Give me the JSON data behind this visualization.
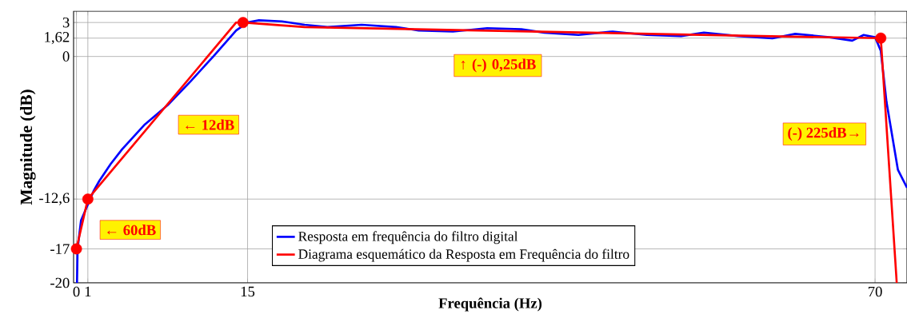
{
  "chart_data": {
    "type": "line",
    "xlabel": "Frequência (Hz)",
    "ylabel": "Magnitude (dB)",
    "xlim": [
      -0.25,
      72.8
    ],
    "ylim": [
      -20,
      4
    ],
    "xticks": [
      0,
      1,
      15,
      70
    ],
    "yticks": [
      -20,
      -17,
      {
        "value": -12.6,
        "label": "-12,6"
      },
      0,
      {
        "value": 1.62,
        "label": "1,62"
      },
      3
    ],
    "grid": true,
    "legend": "bottom",
    "series": [
      {
        "name": "Resposta em frequência do filtro digital",
        "color": "#0000ff",
        "marker": "none",
        "x": [
          0.05,
          0.1,
          0.4,
          1.5,
          2,
          3,
          4,
          6,
          8,
          10,
          12,
          14,
          15,
          16,
          18,
          20,
          22,
          25,
          28,
          30,
          33,
          36,
          39,
          41,
          44,
          47,
          50,
          53,
          55,
          58,
          61,
          63,
          66,
          68,
          69,
          70,
          70.5,
          71,
          72,
          72.8
        ],
        "values": [
          -20,
          -17,
          -14.5,
          -11.9,
          -11,
          -9.5,
          -8.2,
          -6,
          -4.3,
          -2.2,
          0,
          2.3,
          3.0,
          3.2,
          3.1,
          2.8,
          2.6,
          2.8,
          2.6,
          2.3,
          2.2,
          2.5,
          2.4,
          2.1,
          1.9,
          2.2,
          1.9,
          1.8,
          2.1,
          1.8,
          1.6,
          2.0,
          1.7,
          1.4,
          1.9,
          1.7,
          0.5,
          -4,
          -10,
          -11.6
        ]
      },
      {
        "name": "Diagrama esquemático da Resposta em Frequência do filtro",
        "color": "#ff0000",
        "marker": "none",
        "x": [
          0,
          1,
          14,
          14.6,
          20,
          30,
          40,
          50,
          60,
          70.5,
          71.9
        ],
        "values": [
          -17,
          -12.6,
          3,
          3,
          2.6,
          2.4,
          2.2,
          2.0,
          1.8,
          1.62,
          -20
        ]
      },
      {
        "type": "scatter",
        "color": "#ff0000",
        "marker": "circle",
        "x": [
          0,
          1,
          14.6,
          70.5
        ],
        "values": [
          -17,
          -12.6,
          3,
          1.62
        ]
      }
    ],
    "annotations": [
      "← 60dB",
      "← 12dB",
      "↑ (-) 0,25dB",
      "(-) 225dB→"
    ]
  }
}
